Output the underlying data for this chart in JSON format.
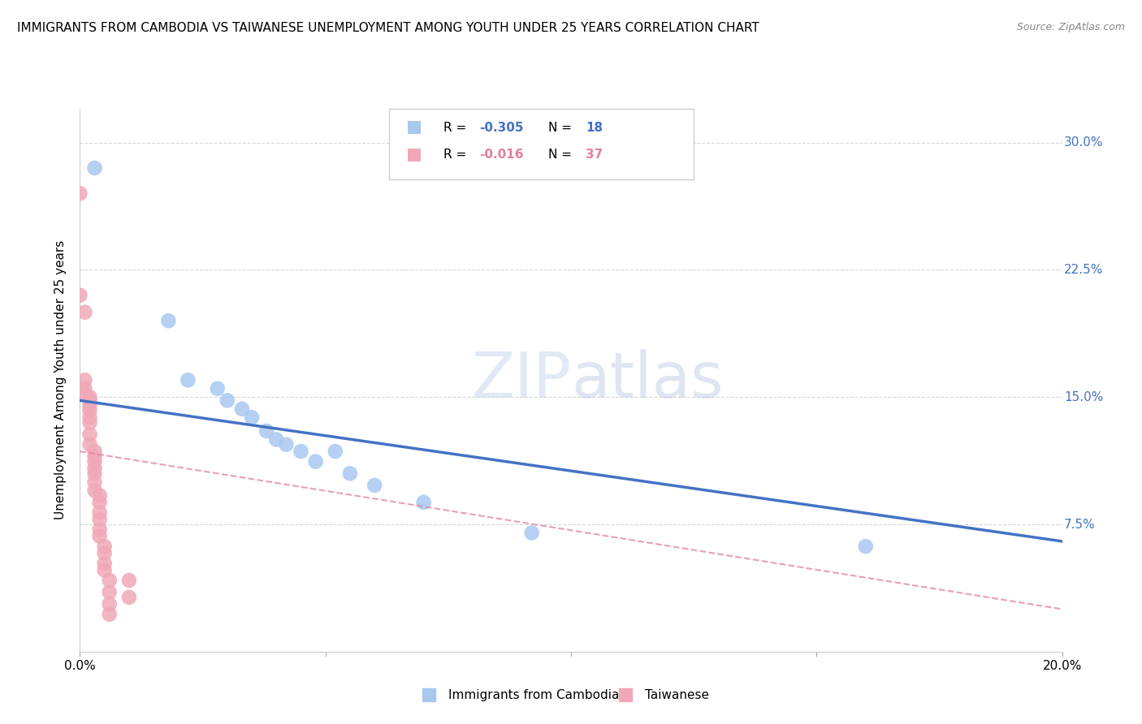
{
  "title": "IMMIGRANTS FROM CAMBODIA VS TAIWANESE UNEMPLOYMENT AMONG YOUTH UNDER 25 YEARS CORRELATION CHART",
  "source": "Source: ZipAtlas.com",
  "ylabel": "Unemployment Among Youth under 25 years",
  "x_min": 0.0,
  "x_max": 0.2,
  "y_min": 0.0,
  "y_max": 0.32,
  "watermark": "ZIPatlas",
  "cambodia_points": [
    [
      0.003,
      0.285
    ],
    [
      0.018,
      0.195
    ],
    [
      0.022,
      0.16
    ],
    [
      0.028,
      0.155
    ],
    [
      0.03,
      0.148
    ],
    [
      0.033,
      0.143
    ],
    [
      0.035,
      0.138
    ],
    [
      0.038,
      0.13
    ],
    [
      0.04,
      0.125
    ],
    [
      0.042,
      0.122
    ],
    [
      0.045,
      0.118
    ],
    [
      0.048,
      0.112
    ],
    [
      0.052,
      0.118
    ],
    [
      0.055,
      0.105
    ],
    [
      0.06,
      0.098
    ],
    [
      0.07,
      0.088
    ],
    [
      0.092,
      0.07
    ],
    [
      0.16,
      0.062
    ]
  ],
  "taiwanese_points": [
    [
      0.0,
      0.27
    ],
    [
      0.0,
      0.21
    ],
    [
      0.001,
      0.2
    ],
    [
      0.001,
      0.16
    ],
    [
      0.001,
      0.155
    ],
    [
      0.001,
      0.152
    ],
    [
      0.002,
      0.15
    ],
    [
      0.002,
      0.148
    ],
    [
      0.002,
      0.145
    ],
    [
      0.002,
      0.142
    ],
    [
      0.002,
      0.138
    ],
    [
      0.002,
      0.135
    ],
    [
      0.002,
      0.128
    ],
    [
      0.002,
      0.122
    ],
    [
      0.003,
      0.118
    ],
    [
      0.003,
      0.115
    ],
    [
      0.003,
      0.112
    ],
    [
      0.003,
      0.108
    ],
    [
      0.003,
      0.105
    ],
    [
      0.003,
      0.1
    ],
    [
      0.003,
      0.095
    ],
    [
      0.004,
      0.092
    ],
    [
      0.004,
      0.088
    ],
    [
      0.004,
      0.082
    ],
    [
      0.004,
      0.078
    ],
    [
      0.004,
      0.072
    ],
    [
      0.004,
      0.068
    ],
    [
      0.005,
      0.062
    ],
    [
      0.005,
      0.058
    ],
    [
      0.005,
      0.052
    ],
    [
      0.005,
      0.048
    ],
    [
      0.006,
      0.042
    ],
    [
      0.006,
      0.035
    ],
    [
      0.006,
      0.028
    ],
    [
      0.006,
      0.022
    ],
    [
      0.01,
      0.042
    ],
    [
      0.01,
      0.032
    ]
  ],
  "cambodia_line": {
    "x0": 0.0,
    "x1": 0.2,
    "y0": 0.148,
    "y1": 0.065
  },
  "taiwanese_line": {
    "x0": 0.0,
    "x1": 0.2,
    "y0": 0.118,
    "y1": 0.025
  },
  "cambodia_line_color": "#4472c4",
  "taiwanese_line_color": "#e080a0",
  "cambodia_point_color": "#a8c8f0",
  "taiwanese_point_color": "#f0a8b8",
  "background_color": "#ffffff",
  "grid_color": "#d8d8d8",
  "right_tick_color": "#4472c4",
  "title_fontsize": 11,
  "legend_r1_value": "-0.305",
  "legend_r1_n": "18",
  "legend_r2_value": "-0.016",
  "legend_r2_n": "37"
}
